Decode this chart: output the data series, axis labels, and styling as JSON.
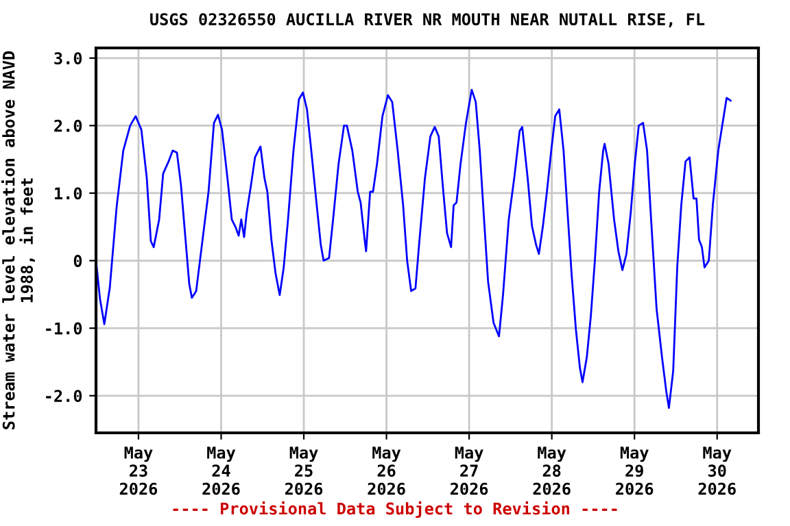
{
  "chart_data": {
    "type": "line",
    "title": "USGS 02326550 AUCILLA RIVER NR MOUTH NEAR NUTALL RISE, FL",
    "ylabel": "Stream water level elevation above NAVD\n1988, in feet",
    "annotations": [
      "---- Provisional Data Subject to Revision ----"
    ],
    "x": [
      "2026-05-22T11:40",
      "2026-05-22T12:50",
      "2026-05-22T14:05",
      "2026-05-22T15:40",
      "2026-05-22T17:40",
      "2026-05-22T19:35",
      "2026-05-22T21:35",
      "2026-05-22T23:10",
      "2026-05-23T00:50",
      "2026-05-23T02:25",
      "2026-05-23T03:35",
      "2026-05-23T04:25",
      "2026-05-23T06:00",
      "2026-05-23T07:10",
      "2026-05-23T08:45",
      "2026-05-23T09:55",
      "2026-05-23T11:10",
      "2026-05-23T12:20",
      "2026-05-23T13:30",
      "2026-05-23T14:45",
      "2026-05-23T15:30",
      "2026-05-23T16:45",
      "2026-05-23T18:20",
      "2026-05-23T20:20",
      "2026-05-23T21:55",
      "2026-05-23T23:05",
      "2026-05-24T00:15",
      "2026-05-24T01:50",
      "2026-05-24T03:05",
      "2026-05-24T04:15",
      "2026-05-24T05:05",
      "2026-05-24T05:50",
      "2026-05-24T06:40",
      "2026-05-24T07:25",
      "2026-05-24T08:40",
      "2026-05-24T09:50",
      "2026-05-24T11:25",
      "2026-05-24T12:35",
      "2026-05-24T13:25",
      "2026-05-24T14:35",
      "2026-05-24T15:50",
      "2026-05-24T17:00",
      "2026-05-24T18:10",
      "2026-05-24T19:25",
      "2026-05-24T21:00",
      "2026-05-24T22:35",
      "2026-05-24T23:45",
      "2026-05-25T00:55",
      "2026-05-25T02:10",
      "2026-05-25T03:45",
      "2026-05-25T04:55",
      "2026-05-25T05:45",
      "2026-05-25T07:20",
      "2026-05-25T08:30",
      "2026-05-25T10:05",
      "2026-05-25T11:40",
      "2026-05-25T12:30",
      "2026-05-25T14:05",
      "2026-05-25T15:40",
      "2026-05-25T16:30",
      "2026-05-25T17:40",
      "2026-05-25T18:05",
      "2026-05-25T19:15",
      "2026-05-25T20:05",
      "2026-05-25T21:15",
      "2026-05-25T22:50",
      "2026-05-26T00:25",
      "2026-05-26T01:40",
      "2026-05-26T03:15",
      "2026-05-26T04:50",
      "2026-05-26T06:00",
      "2026-05-26T07:10",
      "2026-05-26T08:25",
      "2026-05-26T09:35",
      "2026-05-26T11:10",
      "2026-05-26T12:45",
      "2026-05-26T14:00",
      "2026-05-26T15:10",
      "2026-05-26T16:20",
      "2026-05-26T17:35",
      "2026-05-26T18:45",
      "2026-05-26T19:30",
      "2026-05-26T20:20",
      "2026-05-26T21:30",
      "2026-05-26T23:05",
      "2026-05-27T00:45",
      "2026-05-27T01:55",
      "2026-05-27T03:05",
      "2026-05-27T04:20",
      "2026-05-27T05:30",
      "2026-05-27T07:05",
      "2026-05-27T08:40",
      "2026-05-27T09:50",
      "2026-05-27T11:30",
      "2026-05-27T13:05",
      "2026-05-27T14:40",
      "2026-05-27T15:25",
      "2026-05-27T17:00",
      "2026-05-27T18:15",
      "2026-05-27T19:25",
      "2026-05-27T20:15",
      "2026-05-27T21:25",
      "2026-05-27T22:35",
      "2026-05-27T23:50",
      "2026-05-28T01:00",
      "2026-05-28T02:10",
      "2026-05-28T03:25",
      "2026-05-28T04:35",
      "2026-05-28T05:45",
      "2026-05-28T07:00",
      "2026-05-28T08:10",
      "2026-05-28T08:55",
      "2026-05-28T10:10",
      "2026-05-28T11:20",
      "2026-05-28T12:30",
      "2026-05-28T13:45",
      "2026-05-28T14:55",
      "2026-05-28T15:20",
      "2026-05-28T16:30",
      "2026-05-28T18:05",
      "2026-05-28T19:20",
      "2026-05-28T20:30",
      "2026-05-28T21:40",
      "2026-05-28T22:55",
      "2026-05-29T00:05",
      "2026-05-29T01:15",
      "2026-05-29T02:30",
      "2026-05-29T03:40",
      "2026-05-29T04:50",
      "2026-05-29T06:25",
      "2026-05-29T08:00",
      "2026-05-29T09:15",
      "2026-05-29T10:00",
      "2026-05-29T11:15",
      "2026-05-29T12:25",
      "2026-05-29T13:35",
      "2026-05-29T14:50",
      "2026-05-29T16:00",
      "2026-05-29T17:10",
      "2026-05-29T18:00",
      "2026-05-29T18:45",
      "2026-05-29T19:35",
      "2026-05-29T20:20",
      "2026-05-29T21:35",
      "2026-05-29T22:45",
      "2026-05-30T00:20",
      "2026-05-30T01:55",
      "2026-05-30T02:45",
      "2026-05-30T03:55"
    ],
    "series": [
      {
        "color": "#0000ff",
        "values": [
          0.0,
          -0.57,
          -0.94,
          -0.4,
          0.8,
          1.63,
          2.0,
          2.14,
          1.94,
          1.22,
          0.29,
          0.2,
          0.61,
          1.29,
          1.47,
          1.63,
          1.6,
          1.12,
          0.41,
          -0.35,
          -0.55,
          -0.45,
          0.2,
          1.02,
          2.04,
          2.16,
          1.94,
          1.22,
          0.61,
          0.49,
          0.37,
          0.61,
          0.35,
          0.71,
          1.12,
          1.53,
          1.69,
          1.22,
          1.02,
          0.31,
          -0.2,
          -0.51,
          -0.1,
          0.61,
          1.63,
          2.39,
          2.49,
          2.24,
          1.63,
          0.82,
          0.24,
          0.0,
          0.04,
          0.61,
          1.43,
          2.0,
          2.0,
          1.63,
          1.02,
          0.86,
          0.31,
          0.14,
          1.02,
          1.02,
          1.43,
          2.14,
          2.45,
          2.35,
          1.63,
          0.82,
          0.0,
          -0.45,
          -0.41,
          0.31,
          1.22,
          1.84,
          1.98,
          1.84,
          1.12,
          0.41,
          0.2,
          0.82,
          0.86,
          1.43,
          2.04,
          2.53,
          2.35,
          1.63,
          0.61,
          -0.31,
          -0.92,
          -1.12,
          -0.51,
          0.61,
          1.22,
          1.92,
          1.98,
          1.22,
          0.51,
          0.24,
          0.1,
          0.51,
          1.02,
          1.63,
          2.14,
          2.24,
          1.63,
          0.71,
          -0.2,
          -1.02,
          -1.59,
          -1.8,
          -1.43,
          -0.82,
          0.0,
          1.02,
          1.63,
          1.73,
          1.43,
          0.61,
          0.14,
          -0.14,
          0.1,
          0.71,
          1.43,
          2.0,
          2.04,
          1.63,
          0.61,
          -0.71,
          -1.43,
          -1.94,
          -2.18,
          -1.63,
          -0.1,
          0.82,
          1.47,
          1.53,
          0.92,
          0.92,
          0.31,
          0.2,
          -0.1,
          0.0,
          0.82,
          1.63,
          2.14,
          2.41,
          2.37
        ]
      }
    ],
    "xlim": [
      "2026-05-22T11:40",
      "2026-05-30T12:00"
    ],
    "xticks": [
      {
        "value": "2026-05-23",
        "label": "May\n23\n2026"
      },
      {
        "value": "2026-05-24",
        "label": "May\n24\n2026"
      },
      {
        "value": "2026-05-25",
        "label": "May\n25\n2026"
      },
      {
        "value": "2026-05-26",
        "label": "May\n26\n2026"
      },
      {
        "value": "2026-05-27",
        "label": "May\n27\n2026"
      },
      {
        "value": "2026-05-28",
        "label": "May\n28\n2026"
      },
      {
        "value": "2026-05-29",
        "label": "May\n29\n2026"
      },
      {
        "value": "2026-05-30",
        "label": "May\n30\n2026"
      }
    ],
    "ylim": [
      -2.55,
      3.15
    ],
    "yticks": [
      {
        "value": -2,
        "label": "-2.0"
      },
      {
        "value": -1,
        "label": "-1.0"
      },
      {
        "value": 0,
        "label": "0"
      },
      {
        "value": 1,
        "label": "1.0"
      },
      {
        "value": 2,
        "label": "2.0"
      },
      {
        "value": 3,
        "label": "3.0"
      }
    ],
    "grid": true
  }
}
